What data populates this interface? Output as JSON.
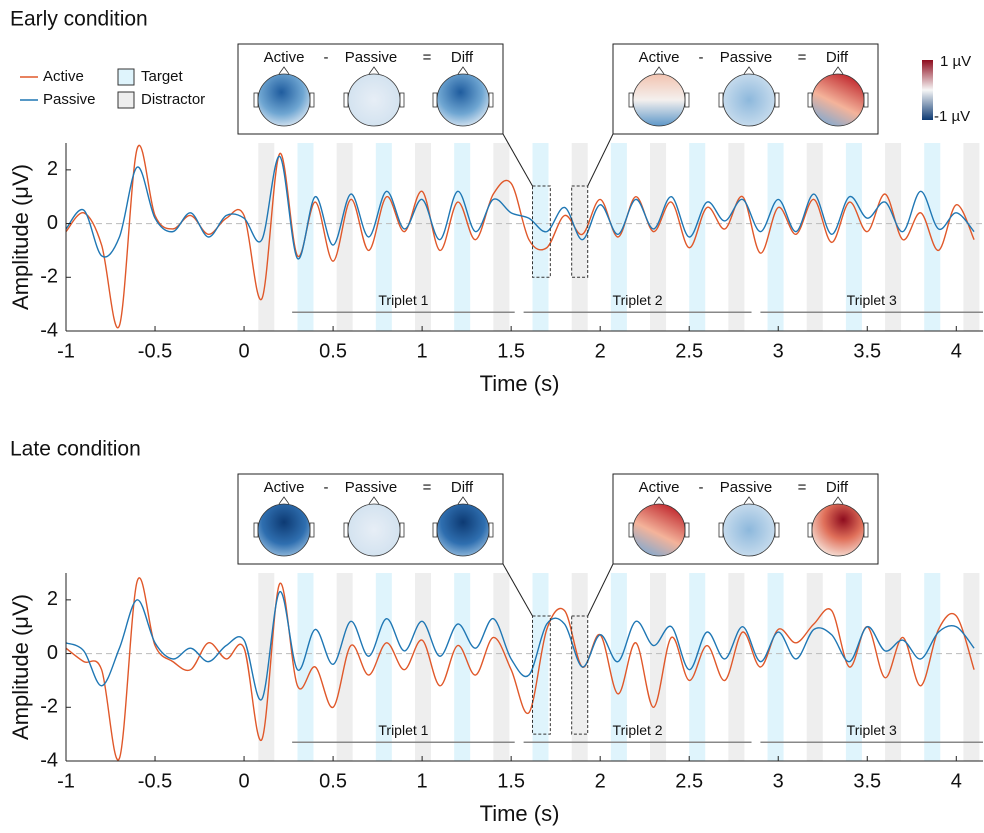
{
  "chart_data": [
    {
      "type": "line",
      "title": "Early condition",
      "xlabel": "Time (s)",
      "ylabel": "Amplitude (μV)",
      "xlim": [
        -1,
        4.15
      ],
      "ylim": [
        -4,
        3
      ],
      "xticks": [
        -1,
        -0.5,
        0,
        0.5,
        1,
        1.5,
        2,
        2.5,
        3,
        3.5,
        4
      ],
      "yticks": [
        -4,
        -2,
        0,
        2
      ],
      "zero_line": true,
      "legend": true,
      "stimulus_legend": [
        "Target",
        "Distractor"
      ],
      "stimulus_colors": {
        "target": "#dff4fc",
        "distractor": "#eeeeee"
      },
      "stimulus_duration": 0.09,
      "target_onsets": [
        0.3,
        0.74,
        1.18,
        1.62,
        2.06,
        2.5,
        2.94,
        3.38,
        3.82
      ],
      "distractor_onsets": [
        0.08,
        0.52,
        0.96,
        1.4,
        1.84,
        2.28,
        2.72,
        3.16,
        3.6,
        4.04
      ],
      "triplet_y": -3.3,
      "triplets": [
        {
          "label": "Triplet 1",
          "start": 0.27,
          "end": 1.52
        },
        {
          "label": "Triplet 2",
          "start": 1.57,
          "end": 2.85
        },
        {
          "label": "Triplet 3",
          "start": 2.9,
          "end": 4.15
        }
      ],
      "windows": [
        {
          "start": 1.62,
          "end": 1.72,
          "low": -2,
          "high": 1.4
        },
        {
          "start": 1.84,
          "end": 1.93,
          "low": -2,
          "high": 1.4
        }
      ],
      "topomaps": [
        {
          "labels": [
            "Active",
            "-",
            "Passive",
            "=",
            "Diff"
          ]
        },
        {
          "labels": [
            "Active",
            "-",
            "Passive",
            "=",
            "Diff"
          ]
        }
      ],
      "colorbar": {
        "max_label": "1 µV",
        "min_label": "-1 µV"
      },
      "x": [
        -1,
        -0.9,
        -0.8,
        -0.7,
        -0.6,
        -0.5,
        -0.4,
        -0.3,
        -0.2,
        -0.1,
        0,
        0.1,
        0.2,
        0.3,
        0.4,
        0.5,
        0.6,
        0.7,
        0.8,
        0.9,
        1,
        1.1,
        1.2,
        1.3,
        1.4,
        1.5,
        1.6,
        1.7,
        1.8,
        1.9,
        2,
        2.1,
        2.2,
        2.3,
        2.4,
        2.5,
        2.6,
        2.7,
        2.8,
        2.9,
        3,
        3.1,
        3.2,
        3.3,
        3.4,
        3.5,
        3.6,
        3.7,
        3.8,
        3.9,
        4,
        4.1
      ],
      "series": [
        {
          "name": "Active",
          "color": "#e0582a",
          "values": [
            -0.3,
            0.4,
            -0.8,
            -3.8,
            2.8,
            0.3,
            -0.2,
            0.3,
            -0.4,
            0.2,
            0.3,
            -2.8,
            2.6,
            -1.2,
            0.8,
            -1.4,
            0.9,
            -1.0,
            1.0,
            -0.3,
            1.2,
            -1.0,
            0.8,
            -0.6,
            1.1,
            1.5,
            -0.6,
            -0.9,
            0.3,
            -0.4,
            0.9,
            -0.5,
            1.0,
            -0.3,
            0.8,
            -0.9,
            0.6,
            -0.2,
            1.0,
            -1.1,
            0.6,
            -0.4,
            0.9,
            -0.7,
            0.8,
            -0.3,
            1.1,
            -0.6,
            0.4,
            -1.0,
            0.7,
            -0.6
          ]
        },
        {
          "name": "Passive",
          "color": "#1f77b4",
          "values": [
            -0.2,
            0.5,
            -1.2,
            -0.5,
            2.1,
            0.2,
            -0.3,
            0.4,
            -0.5,
            0.3,
            0.2,
            -0.6,
            2.5,
            -1.3,
            1.0,
            -0.8,
            1.1,
            -0.5,
            1.2,
            -0.2,
            0.9,
            -0.6,
            1.2,
            -0.3,
            0.9,
            0.4,
            0.2,
            -0.3,
            0.6,
            -0.6,
            0.7,
            -0.4,
            0.9,
            -0.2,
            1.0,
            -0.5,
            0.8,
            0.1,
            0.9,
            -0.3,
            0.9,
            -0.3,
            1.1,
            -0.4,
            1.0,
            0.2,
            0.8,
            -0.3,
            1.2,
            -0.2,
            0.4,
            -0.3
          ]
        }
      ]
    },
    {
      "type": "line",
      "title": "Late condition",
      "xlabel": "Time (s)",
      "ylabel": "Amplitude (μV)",
      "xlim": [
        -1,
        4.15
      ],
      "ylim": [
        -4,
        3
      ],
      "xticks": [
        -1,
        -0.5,
        0,
        0.5,
        1,
        1.5,
        2,
        2.5,
        3,
        3.5,
        4
      ],
      "yticks": [
        -4,
        -2,
        0,
        2
      ],
      "zero_line": true,
      "legend": false,
      "stimulus_colors": {
        "target": "#dff4fc",
        "distractor": "#eeeeee"
      },
      "stimulus_duration": 0.09,
      "target_onsets": [
        0.3,
        0.74,
        1.18,
        1.62,
        2.06,
        2.5,
        2.94,
        3.38,
        3.82
      ],
      "distractor_onsets": [
        0.08,
        0.52,
        0.96,
        1.4,
        1.84,
        2.28,
        2.72,
        3.16,
        3.6,
        4.04
      ],
      "triplet_y": -3.3,
      "triplets": [
        {
          "label": "Triplet 1",
          "start": 0.27,
          "end": 1.52
        },
        {
          "label": "Triplet 2",
          "start": 1.57,
          "end": 2.85
        },
        {
          "label": "Triplet 3",
          "start": 2.9,
          "end": 4.15
        }
      ],
      "windows": [
        {
          "start": 1.62,
          "end": 1.72,
          "low": -3,
          "high": 1.4
        },
        {
          "start": 1.84,
          "end": 1.93,
          "low": -3,
          "high": 1.4
        }
      ],
      "topomaps": [
        {
          "labels": [
            "Active",
            "-",
            "Passive",
            "=",
            "Diff"
          ]
        },
        {
          "labels": [
            "Active",
            "-",
            "Passive",
            "=",
            "Diff"
          ]
        }
      ],
      "x": [
        -1,
        -0.9,
        -0.8,
        -0.7,
        -0.6,
        -0.5,
        -0.4,
        -0.3,
        -0.2,
        -0.1,
        0,
        0.1,
        0.2,
        0.3,
        0.4,
        0.5,
        0.6,
        0.7,
        0.8,
        0.9,
        1,
        1.1,
        1.2,
        1.3,
        1.4,
        1.5,
        1.6,
        1.7,
        1.8,
        1.9,
        2,
        2.1,
        2.2,
        2.3,
        2.4,
        2.5,
        2.6,
        2.7,
        2.8,
        2.9,
        3,
        3.1,
        3.2,
        3.3,
        3.4,
        3.5,
        3.6,
        3.7,
        3.8,
        3.9,
        4,
        4.1
      ],
      "series": [
        {
          "name": "Active",
          "color": "#e0582a",
          "values": [
            0.2,
            -0.3,
            -0.6,
            -3.9,
            2.7,
            0.3,
            -0.3,
            -0.6,
            0.4,
            -0.2,
            0.2,
            -3.2,
            2.6,
            -1.2,
            -0.5,
            -2.0,
            0.3,
            -0.8,
            0.4,
            -0.6,
            0.5,
            -1.2,
            0.3,
            -0.8,
            0.6,
            -0.6,
            -2.2,
            0.9,
            1.6,
            -0.5,
            0.7,
            -1.5,
            0.4,
            -2.0,
            0.6,
            -1.0,
            0.3,
            -1.0,
            0.8,
            -0.5,
            0.9,
            0.4,
            1.1,
            1.6,
            -0.5,
            1.0,
            -0.9,
            0.6,
            -1.2,
            0.9,
            1.4,
            -0.6
          ]
        },
        {
          "name": "Passive",
          "color": "#1f77b4",
          "values": [
            0.4,
            0.1,
            -1.2,
            0.2,
            2.0,
            0.4,
            -0.2,
            0.2,
            -0.3,
            0.3,
            0.5,
            -1.7,
            2.3,
            -0.6,
            0.9,
            -0.4,
            1.2,
            -0.1,
            1.3,
            0.1,
            1.2,
            -0.1,
            1.1,
            0.2,
            1.3,
            -0.2,
            -0.8,
            1.1,
            1.1,
            -0.5,
            0.7,
            -0.3,
            1.2,
            0.3,
            1.0,
            -0.6,
            0.8,
            -0.2,
            1.0,
            -0.3,
            0.8,
            -0.2,
            0.9,
            0.7,
            -0.3,
            1.0,
            0.1,
            0.5,
            -0.2,
            0.8,
            1.0,
            0.2
          ]
        }
      ]
    }
  ]
}
